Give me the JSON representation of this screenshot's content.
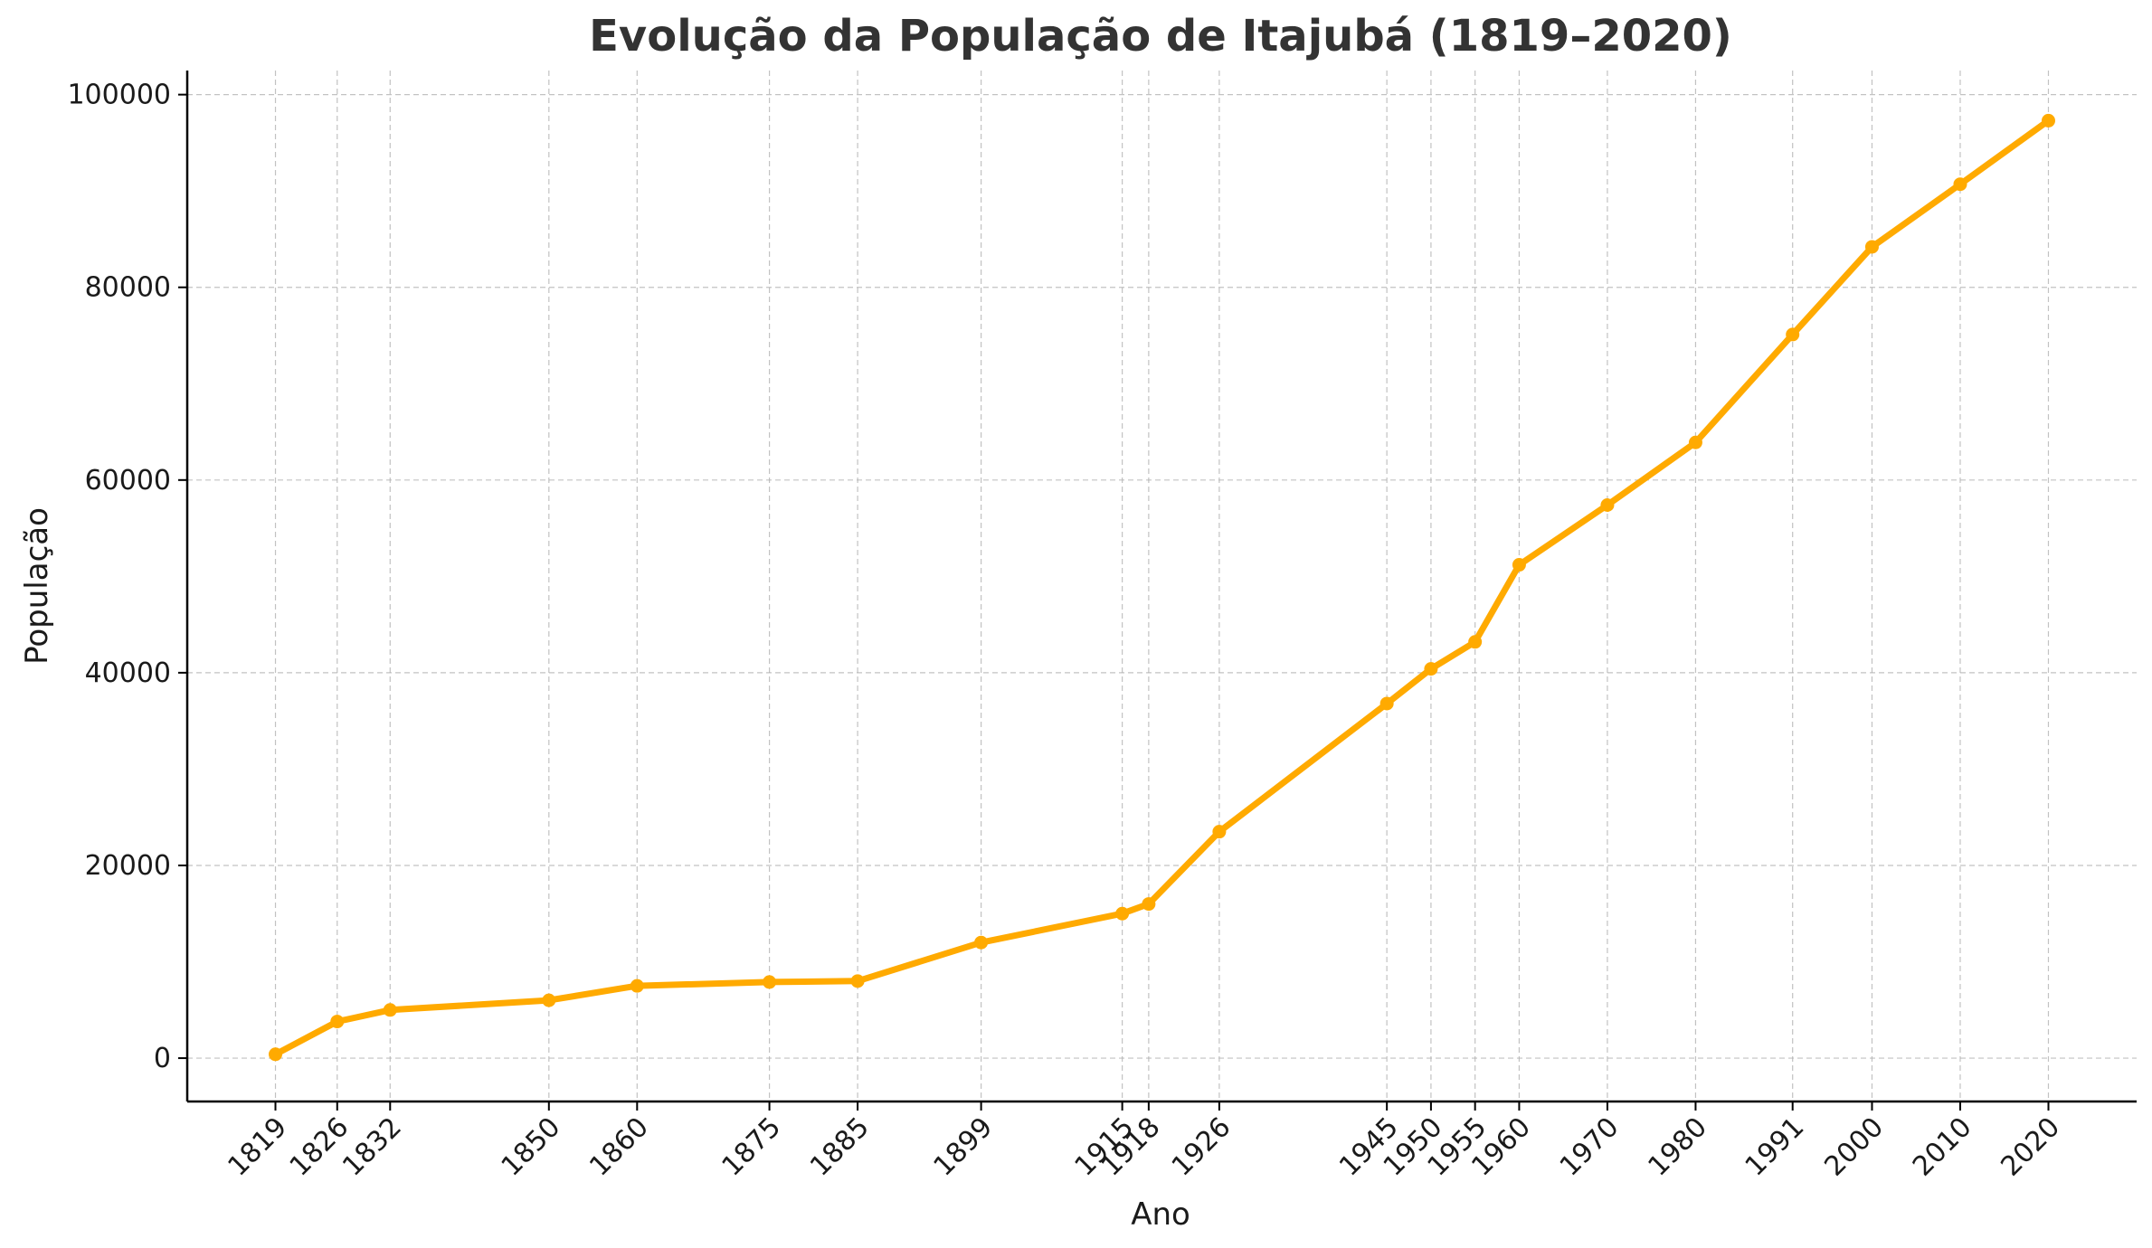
{
  "chart_data": {
    "type": "line",
    "title": "Evolução da População de Itajubá (1819–2020)",
    "xlabel": "Ano",
    "ylabel": "População",
    "x": [
      1819,
      1826,
      1832,
      1850,
      1860,
      1875,
      1885,
      1899,
      1915,
      1918,
      1926,
      1945,
      1950,
      1955,
      1960,
      1970,
      1980,
      1991,
      2000,
      2010,
      2020
    ],
    "x_tick_labels": [
      "1819",
      "1826",
      "1832",
      "1850",
      "1860",
      "1875",
      "1885",
      "1899",
      "1915",
      "1918",
      "1926",
      "1945",
      "1950",
      "1955",
      "1960",
      "1970",
      "1980",
      "1991",
      "2000",
      "2010",
      "2020"
    ],
    "series": [
      {
        "values": [
          400,
          3800,
          5000,
          6000,
          7500,
          7900,
          8000,
          12000,
          15000,
          16000,
          23500,
          36800,
          40400,
          43200,
          51200,
          57400,
          63900,
          75100,
          84200,
          90700,
          97300
        ]
      }
    ],
    "y_ticks": [
      0,
      20000,
      40000,
      60000,
      80000,
      100000
    ],
    "y_tick_labels": [
      "0",
      "20000",
      "40000",
      "60000",
      "80000",
      "100000"
    ],
    "ylim": [
      -4500,
      102500
    ],
    "xlim": [
      1809,
      2030
    ],
    "grid": true,
    "line_color": "#FFAA00"
  }
}
